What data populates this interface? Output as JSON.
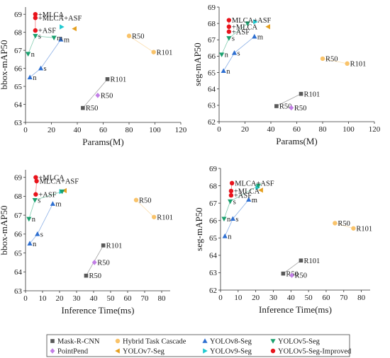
{
  "chart_data": [
    {
      "type": "scatter",
      "title": "",
      "xlabel": "Params(M)",
      "ylabel": "bbox-mAP50",
      "xlim": [
        0,
        120
      ],
      "ylim": [
        63,
        69.4
      ],
      "xticks": [
        0,
        20,
        40,
        60,
        80,
        100,
        120
      ],
      "yticks": [
        63,
        64,
        65,
        66,
        67,
        68,
        69
      ],
      "series": [
        {
          "model": "mask-rcnn",
          "points": [
            {
              "x": 44.3,
              "y": 63.8,
              "label": "R50"
            },
            {
              "x": 63.3,
              "y": 65.4,
              "label": "R101"
            }
          ]
        },
        {
          "model": "htc",
          "points": [
            {
              "x": 80,
              "y": 67.8,
              "label": "R50"
            },
            {
              "x": 99,
              "y": 66.9,
              "label": "R101"
            }
          ]
        },
        {
          "model": "pointrend",
          "points": [
            {
              "x": 55.8,
              "y": 64.5,
              "label": "R50"
            }
          ]
        },
        {
          "model": "yolov8",
          "points": [
            {
              "x": 3.4,
              "y": 65.5,
              "label": "n"
            },
            {
              "x": 11.8,
              "y": 66,
              "label": "s"
            },
            {
              "x": 27.3,
              "y": 67.6,
              "label": "m"
            }
          ]
        },
        {
          "model": "yolov7",
          "points": [
            {
              "x": 37.9,
              "y": 68.2,
              "label": ""
            }
          ]
        },
        {
          "model": "yolov9",
          "points": [
            {
              "x": 27.9,
              "y": 68.3,
              "label": ""
            }
          ]
        },
        {
          "model": "yolov5",
          "points": [
            {
              "x": 2,
              "y": 66.8,
              "label": "n"
            },
            {
              "x": 7.6,
              "y": 67.8,
              "label": "s"
            },
            {
              "x": 22,
              "y": 67.7,
              "label": "m"
            }
          ]
        },
        {
          "model": "yolov5-improved",
          "points": [
            {
              "x": 7.6,
              "y": 68.1,
              "label": "+ASF"
            },
            {
              "x": 7.6,
              "y": 68.8,
              "label": "+MLCA+ASF"
            },
            {
              "x": 7.6,
              "y": 69,
              "label": "+MLCA"
            }
          ]
        }
      ]
    },
    {
      "type": "scatter",
      "title": "",
      "xlabel": "Params(M)",
      "ylabel": "seg-mAP50",
      "xlim": [
        0,
        120
      ],
      "ylim": [
        62,
        69
      ],
      "xticks": [
        0,
        20,
        40,
        60,
        80,
        100,
        120
      ],
      "yticks": [
        62,
        63,
        64,
        65,
        66,
        67,
        68,
        69
      ],
      "series": [
        {
          "model": "mask-rcnn",
          "points": [
            {
              "x": 44.3,
              "y": 62.95,
              "label": "R50"
            },
            {
              "x": 63.3,
              "y": 63.7,
              "label": "R101"
            }
          ]
        },
        {
          "model": "htc",
          "points": [
            {
              "x": 80,
              "y": 65.85,
              "label": "R50"
            },
            {
              "x": 99,
              "y": 65.55,
              "label": "R101"
            }
          ]
        },
        {
          "model": "pointrend",
          "points": [
            {
              "x": 55.8,
              "y": 62.85,
              "label": "R50"
            }
          ]
        },
        {
          "model": "yolov8",
          "points": [
            {
              "x": 3.4,
              "y": 65.1,
              "label": "n"
            },
            {
              "x": 11.8,
              "y": 66.2,
              "label": "s"
            },
            {
              "x": 27.3,
              "y": 67.2,
              "label": "m"
            }
          ]
        },
        {
          "model": "yolov7",
          "points": [
            {
              "x": 37.9,
              "y": 67.8,
              "label": ""
            }
          ]
        },
        {
          "model": "yolov9",
          "points": [
            {
              "x": 27.9,
              "y": 68.1,
              "label": ""
            }
          ]
        },
        {
          "model": "yolov5",
          "points": [
            {
              "x": 2,
              "y": 66.1,
              "label": "n"
            },
            {
              "x": 7.6,
              "y": 67.1,
              "label": "s"
            },
            {
              "x": 22,
              "y": 68.0,
              "label": ""
            }
          ]
        },
        {
          "model": "yolov5-improved",
          "points": [
            {
              "x": 7.6,
              "y": 67.5,
              "label": "+ASF"
            },
            {
              "x": 7.6,
              "y": 67.8,
              "label": "+MLCA"
            },
            {
              "x": 7.6,
              "y": 68.2,
              "label": "MLCA+ASF"
            }
          ]
        }
      ]
    },
    {
      "type": "scatter",
      "title": "",
      "xlabel": "Inference Time(ms)",
      "ylabel": "bbox-mAP50",
      "xlim": [
        0,
        85
      ],
      "ylim": [
        63,
        69.4
      ],
      "xticks": [
        0,
        10,
        20,
        30,
        40,
        50,
        60,
        70,
        80
      ],
      "yticks": [
        63,
        64,
        65,
        66,
        67,
        68,
        69
      ],
      "series": [
        {
          "model": "mask-rcnn",
          "points": [
            {
              "x": 35.6,
              "y": 63.8,
              "label": "R50"
            },
            {
              "x": 45.7,
              "y": 65.4,
              "label": "R101"
            }
          ]
        },
        {
          "model": "htc",
          "points": [
            {
              "x": 65,
              "y": 67.8,
              "label": "R50"
            },
            {
              "x": 75.5,
              "y": 66.9,
              "label": "R101"
            }
          ]
        },
        {
          "model": "pointrend",
          "points": [
            {
              "x": 40.5,
              "y": 64.5,
              "label": "R50"
            }
          ]
        },
        {
          "model": "yolov8",
          "points": [
            {
              "x": 2.5,
              "y": 65.5,
              "label": "n"
            },
            {
              "x": 7,
              "y": 66,
              "label": "s"
            },
            {
              "x": 16,
              "y": 67.6,
              "label": "m"
            }
          ]
        },
        {
          "model": "yolov7",
          "points": [
            {
              "x": 23,
              "y": 68.3,
              "label": ""
            }
          ]
        },
        {
          "model": "yolov9",
          "points": [
            {
              "x": 21,
              "y": 68.25,
              "label": ""
            }
          ]
        },
        {
          "model": "yolov5",
          "points": [
            {
              "x": 2,
              "y": 66.8,
              "label": "n"
            },
            {
              "x": 5.5,
              "y": 67.8,
              "label": "s"
            },
            {
              "x": 21.5,
              "y": 68.25,
              "label": ""
            }
          ]
        },
        {
          "model": "yolov5-improved",
          "points": [
            {
              "x": 6,
              "y": 68.1,
              "label": "+ASF"
            },
            {
              "x": 6.5,
              "y": 68.8,
              "label": "MLCA+ASF"
            },
            {
              "x": 6,
              "y": 69.0,
              "label": "+MLCA"
            }
          ]
        }
      ]
    },
    {
      "type": "scatter",
      "title": "",
      "xlabel": "Inference Time(ms)",
      "ylabel": "seg-mAP50",
      "xlim": [
        0,
        85
      ],
      "ylim": [
        62,
        69
      ],
      "xticks": [
        0,
        10,
        20,
        30,
        40,
        50,
        60,
        70,
        80
      ],
      "yticks": [
        62,
        63,
        64,
        65,
        66,
        67,
        68,
        69
      ],
      "series": [
        {
          "model": "mask-rcnn",
          "points": [
            {
              "x": 35.6,
              "y": 62.95,
              "label": "R50"
            },
            {
              "x": 45.7,
              "y": 63.7,
              "label": "R101"
            }
          ]
        },
        {
          "model": "htc",
          "points": [
            {
              "x": 65,
              "y": 65.85,
              "label": "R50"
            },
            {
              "x": 75.5,
              "y": 65.55,
              "label": "R101"
            }
          ]
        },
        {
          "model": "pointrend",
          "points": [
            {
              "x": 40.5,
              "y": 62.85,
              "label": "R50"
            }
          ]
        },
        {
          "model": "yolov8",
          "points": [
            {
              "x": 2.5,
              "y": 65.1,
              "label": "n"
            },
            {
              "x": 7,
              "y": 66.1,
              "label": "s"
            },
            {
              "x": 16,
              "y": 67.2,
              "label": "m"
            }
          ]
        },
        {
          "model": "yolov7",
          "points": [
            {
              "x": 23,
              "y": 67.75,
              "label": ""
            }
          ]
        },
        {
          "model": "yolov9",
          "points": [
            {
              "x": 21,
              "y": 67.9,
              "label": ""
            }
          ]
        },
        {
          "model": "yolov5",
          "points": [
            {
              "x": 2,
              "y": 66.1,
              "label": "n"
            },
            {
              "x": 5.5,
              "y": 67.1,
              "label": "s"
            },
            {
              "x": 21.5,
              "y": 68.0,
              "label": ""
            }
          ]
        },
        {
          "model": "yolov5-improved",
          "points": [
            {
              "x": 6,
              "y": 67.45,
              "label": "+ASF"
            },
            {
              "x": 6,
              "y": 67.7,
              "label": "+MLCA"
            },
            {
              "x": 6.5,
              "y": 68.15,
              "label": "MLCA+ASF"
            }
          ]
        }
      ]
    }
  ],
  "legend": {
    "placement": "bottom",
    "items": [
      {
        "model": "mask-rcnn",
        "label": "Mask-R-CNN",
        "color": "#595959",
        "marker": "square"
      },
      {
        "model": "htc",
        "label": "Hybrid Task Cascade",
        "color": "#f9c36a",
        "marker": "circle"
      },
      {
        "model": "yolov8",
        "label": "YOLOv8-Seg",
        "color": "#2e6fd1",
        "marker": "triangle-up"
      },
      {
        "model": "yolov5",
        "label": "YOLOv5-Seg",
        "color": "#1aa06e",
        "marker": "triangle-down"
      },
      {
        "model": "pointrend",
        "label": "PointPend",
        "color": "#c27ee6",
        "marker": "diamond"
      },
      {
        "model": "yolov7",
        "label": "YOLOv7-Seg",
        "color": "#e5a020",
        "marker": "triangle-left"
      },
      {
        "model": "yolov9",
        "label": "YOLOv9-Seg",
        "color": "#1ec9d0",
        "marker": "triangle-right"
      },
      {
        "model": "yolov5-improved",
        "label": "YOLOv5-Seg-Improved",
        "color": "#e8141c",
        "marker": "circle"
      }
    ]
  }
}
